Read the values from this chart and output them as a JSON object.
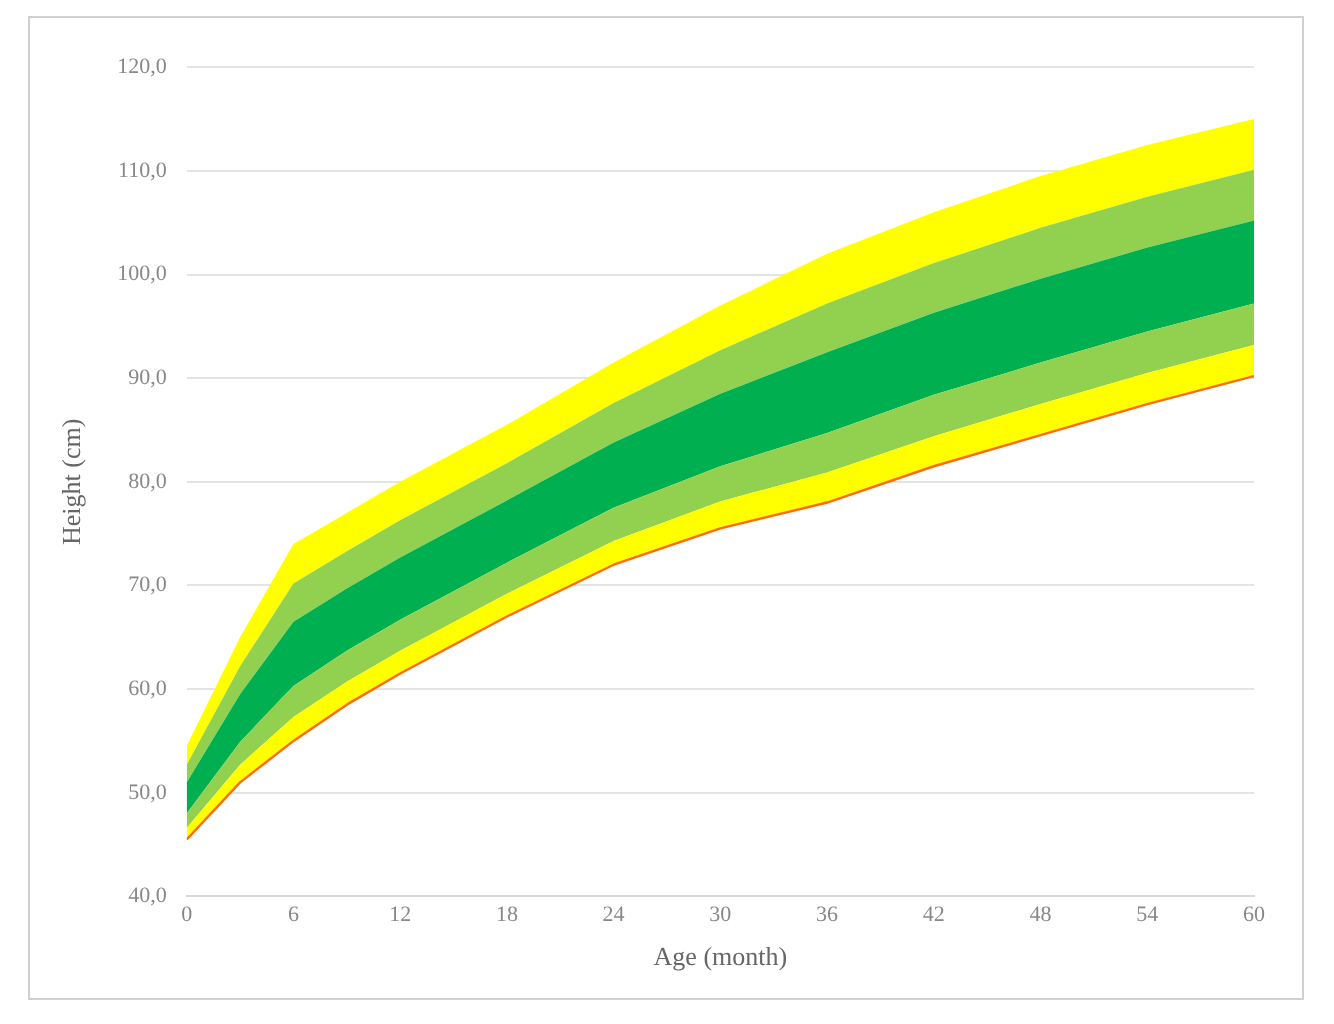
{
  "chart_data": {
    "type": "area",
    "xlabel": "Age (month)",
    "ylabel": "Height (cm)",
    "x": [
      0,
      3,
      6,
      9,
      12,
      18,
      24,
      30,
      36,
      42,
      48,
      54,
      60
    ],
    "series": [
      {
        "type": "line",
        "color": "#ff6a00",
        "values": [
          45.5,
          51,
          55,
          58.5,
          61.5,
          67,
          72,
          75.5,
          78,
          81.5,
          84.5,
          87.5,
          90.2
        ]
      },
      {
        "color": "#ffff00",
        "values": [
          46.6,
          52.7,
          57.3,
          60.7,
          63.7,
          69.2,
          74.3,
          78.1,
          80.9,
          84.4,
          87.5,
          90.5,
          93.2
        ]
      },
      {
        "color": "#92d050",
        "values": [
          48,
          54.9,
          60.3,
          63.7,
          66.7,
          72.2,
          77.5,
          81.5,
          84.7,
          88.4,
          91.5,
          94.5,
          97.2
        ]
      },
      {
        "color": "#00b050",
        "values": [
          51,
          59.5,
          66.5,
          69.7,
          72.7,
          78.2,
          83.8,
          88.5,
          92.5,
          96.3,
          99.6,
          102.6,
          105.2
        ]
      },
      {
        "color": "#92d050",
        "values": [
          52.7,
          62.2,
          70.2,
          73.3,
          76.3,
          81.8,
          87.6,
          92.7,
          97.2,
          101.1,
          104.5,
          107.5,
          110.1
        ]
      },
      {
        "color": "#ffff00",
        "values": [
          54.5,
          65,
          74,
          77,
          80,
          85.5,
          91.5,
          97,
          102,
          106,
          109.5,
          112.5,
          115
        ]
      }
    ],
    "xlim": [
      0,
      60
    ],
    "xticks": [
      0,
      6,
      12,
      18,
      24,
      30,
      36,
      42,
      48,
      54,
      60
    ],
    "ylim": [
      40,
      120
    ],
    "yticks": [
      {
        "value": 40,
        "label": "40,0"
      },
      {
        "value": 50,
        "label": "50,0"
      },
      {
        "value": 60,
        "label": "60,0"
      },
      {
        "value": 70,
        "label": "70,0"
      },
      {
        "value": 80,
        "label": "80,0"
      },
      {
        "value": 90,
        "label": "90,0"
      },
      {
        "value": 100,
        "label": "100,0"
      },
      {
        "value": 110,
        "label": "110,0"
      },
      {
        "value": 120,
        "label": "120,0"
      }
    ],
    "grid": "y",
    "legend": false,
    "marker": "none"
  }
}
